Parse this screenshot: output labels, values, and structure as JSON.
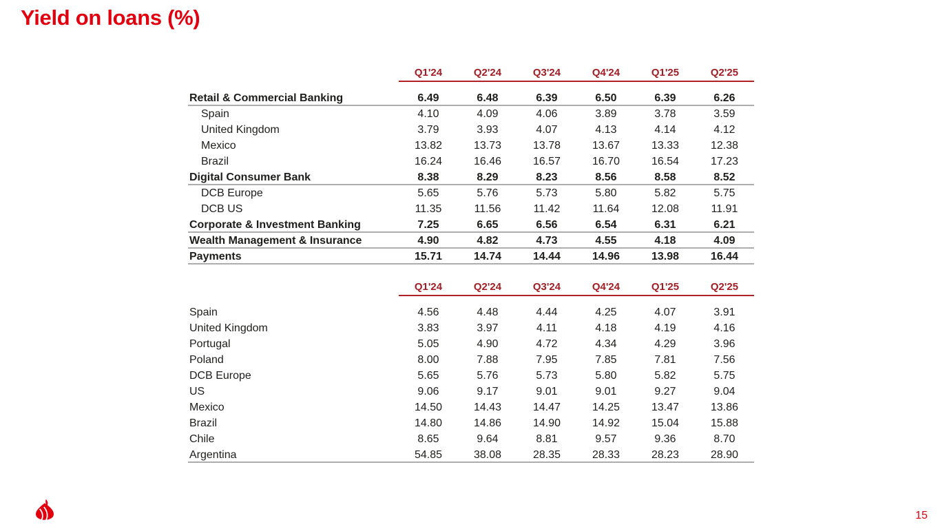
{
  "slide": {
    "title": "Yield on loans (%)",
    "page_number": "15"
  },
  "brand": {
    "logo": "santander-flame-icon"
  },
  "colors": {
    "brand_red": "#E2000F",
    "header_red": "#A21E24",
    "header_line_red": "#B02024",
    "divider_gray": "#ADADAD",
    "text_dark": "#1D1D1B"
  },
  "tables": [
    {
      "name": "yield-by-business-segment",
      "columns": [
        "Q1'24",
        "Q2'24",
        "Q3'24",
        "Q4'24",
        "Q1'25",
        "Q2'25"
      ],
      "rows": [
        {
          "label": "Retail & Commercial Banking",
          "style": "section",
          "rule_below": true,
          "values": [
            "6.49",
            "6.48",
            "6.39",
            "6.50",
            "6.39",
            "6.26"
          ]
        },
        {
          "label": "Spain",
          "style": "sub",
          "rule_below": false,
          "values": [
            "4.10",
            "4.09",
            "4.06",
            "3.89",
            "3.78",
            "3.59"
          ]
        },
        {
          "label": "United Kingdom",
          "style": "sub",
          "rule_below": false,
          "values": [
            "3.79",
            "3.93",
            "4.07",
            "4.13",
            "4.14",
            "4.12"
          ]
        },
        {
          "label": "Mexico",
          "style": "sub",
          "rule_below": false,
          "values": [
            "13.82",
            "13.73",
            "13.78",
            "13.67",
            "13.33",
            "12.38"
          ]
        },
        {
          "label": "Brazil",
          "style": "sub",
          "rule_below": false,
          "values": [
            "16.24",
            "16.46",
            "16.57",
            "16.70",
            "16.54",
            "17.23"
          ]
        },
        {
          "label": "Digital Consumer Bank",
          "style": "section",
          "rule_below": true,
          "values": [
            "8.38",
            "8.29",
            "8.23",
            "8.56",
            "8.58",
            "8.52"
          ]
        },
        {
          "label": "DCB Europe",
          "style": "sub",
          "rule_below": false,
          "values": [
            "5.65",
            "5.76",
            "5.73",
            "5.80",
            "5.82",
            "5.75"
          ]
        },
        {
          "label": "DCB US",
          "style": "sub",
          "rule_below": false,
          "values": [
            "11.35",
            "11.56",
            "11.42",
            "11.64",
            "12.08",
            "11.91"
          ]
        },
        {
          "label": "Corporate & Investment Banking",
          "style": "section",
          "rule_below": true,
          "values": [
            "7.25",
            "6.65",
            "6.56",
            "6.54",
            "6.31",
            "6.21"
          ]
        },
        {
          "label": "Wealth Management & Insurance",
          "style": "section",
          "rule_below": true,
          "values": [
            "4.90",
            "4.82",
            "4.73",
            "4.55",
            "4.18",
            "4.09"
          ]
        },
        {
          "label": "Payments",
          "style": "section",
          "rule_below": true,
          "values": [
            "15.71",
            "14.74",
            "14.44",
            "14.96",
            "13.98",
            "16.44"
          ]
        }
      ]
    },
    {
      "name": "yield-by-country",
      "columns": [
        "Q1'24",
        "Q2'24",
        "Q3'24",
        "Q4'24",
        "Q1'25",
        "Q2'25"
      ],
      "rows": [
        {
          "label": "Spain",
          "style": "plain",
          "rule_below": false,
          "values": [
            "4.56",
            "4.48",
            "4.44",
            "4.25",
            "4.07",
            "3.91"
          ]
        },
        {
          "label": "United Kingdom",
          "style": "plain",
          "rule_below": false,
          "values": [
            "3.83",
            "3.97",
            "4.11",
            "4.18",
            "4.19",
            "4.16"
          ]
        },
        {
          "label": "Portugal",
          "style": "plain",
          "rule_below": false,
          "values": [
            "5.05",
            "4.90",
            "4.72",
            "4.34",
            "4.29",
            "3.96"
          ]
        },
        {
          "label": "Poland",
          "style": "plain",
          "rule_below": false,
          "values": [
            "8.00",
            "7.88",
            "7.95",
            "7.85",
            "7.81",
            "7.56"
          ]
        },
        {
          "label": "DCB Europe",
          "style": "plain",
          "rule_below": false,
          "values": [
            "5.65",
            "5.76",
            "5.73",
            "5.80",
            "5.82",
            "5.75"
          ]
        },
        {
          "label": "US",
          "style": "plain",
          "rule_below": false,
          "values": [
            "9.06",
            "9.17",
            "9.01",
            "9.01",
            "9.27",
            "9.04"
          ]
        },
        {
          "label": "Mexico",
          "style": "plain",
          "rule_below": false,
          "values": [
            "14.50",
            "14.43",
            "14.47",
            "14.25",
            "13.47",
            "13.86"
          ]
        },
        {
          "label": "Brazil",
          "style": "plain",
          "rule_below": false,
          "values": [
            "14.80",
            "14.86",
            "14.90",
            "14.92",
            "15.04",
            "15.88"
          ]
        },
        {
          "label": "Chile",
          "style": "plain",
          "rule_below": false,
          "values": [
            "8.65",
            "9.64",
            "8.81",
            "9.57",
            "9.36",
            "8.70"
          ]
        },
        {
          "label": "Argentina",
          "style": "plain",
          "rule_below": true,
          "values": [
            "54.85",
            "38.08",
            "28.35",
            "28.33",
            "28.23",
            "28.90"
          ]
        }
      ]
    }
  ]
}
